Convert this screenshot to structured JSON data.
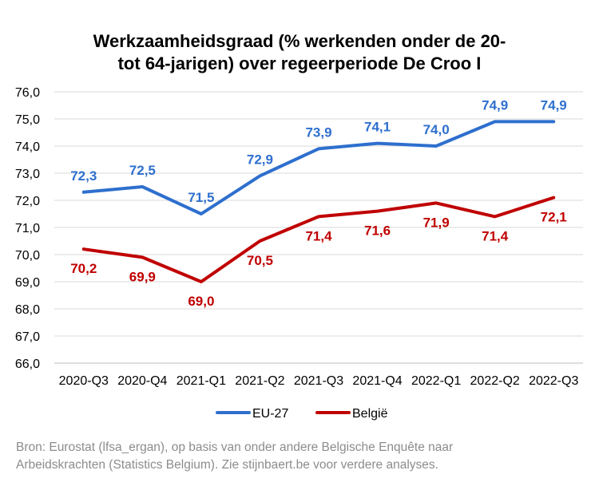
{
  "title_lines": [
    "Werkzaamheidsgraad (% werkenden onder de 20-",
    "tot 64-jarigen) over regeerperiode De Croo I"
  ],
  "chart_data": {
    "type": "line",
    "categories": [
      "2020-Q3",
      "2020-Q4",
      "2021-Q1",
      "2021-Q2",
      "2021-Q3",
      "2021-Q4",
      "2022-Q1",
      "2022-Q2",
      "2022-Q3"
    ],
    "series": [
      {
        "name": "EU-27",
        "color": "#2e6fce",
        "values": [
          72.3,
          72.5,
          71.5,
          72.9,
          73.9,
          74.1,
          74.0,
          74.9,
          74.9
        ],
        "labels": [
          "72,3",
          "72,5",
          "71,5",
          "72,9",
          "73,9",
          "74,1",
          "74,0",
          "74,9",
          "74,9"
        ],
        "label_position": "above"
      },
      {
        "name": "België",
        "color": "#c00000",
        "values": [
          70.2,
          69.9,
          69.0,
          70.5,
          71.4,
          71.6,
          71.9,
          71.4,
          72.1
        ],
        "labels": [
          "70,2",
          "69,9",
          "69,0",
          "70,5",
          "71,4",
          "71,6",
          "71,9",
          "71,4",
          "72,1"
        ],
        "label_position": "below"
      }
    ],
    "ylim": [
      66,
      76
    ],
    "yticks": [
      76,
      75,
      74,
      73,
      72,
      71,
      70,
      69,
      68,
      67,
      66
    ],
    "ytick_labels": [
      "76,0",
      "75,0",
      "74,0",
      "73,0",
      "72,0",
      "71,0",
      "70,0",
      "69,0",
      "68,0",
      "67,0",
      "66,0"
    ],
    "grid": true,
    "legend_placement": "bottom"
  },
  "source_lines": [
    "Bron: Eurostat (lfsa_ergan), op basis van onder andere Belgische Enquête naar",
    "Arbeidskrachten (Statistics Belgium). Zie stijnbaert.be voor verdere analyses."
  ]
}
